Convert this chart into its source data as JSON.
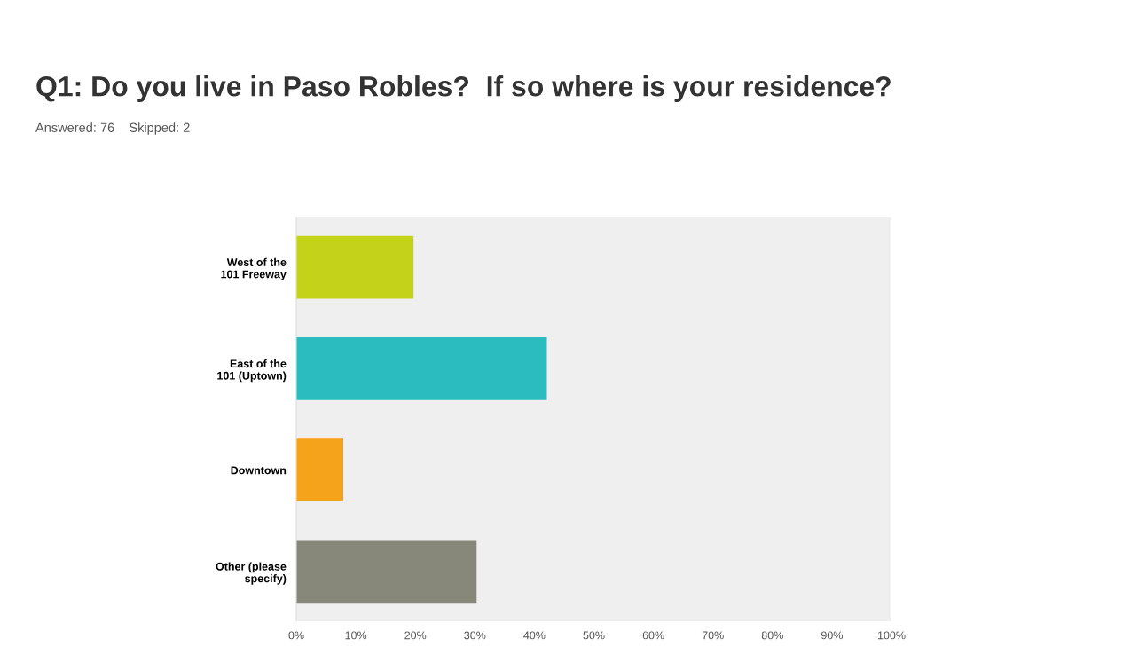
{
  "chart_data": {
    "type": "bar",
    "orientation": "horizontal",
    "title": "Q1: Do you live in Paso Robles?  If so where is your residence?",
    "subtitle": "Answered: 76    Skipped: 2",
    "categories": [
      "West of the\n101 Freeway",
      "East of the\n101 (Uptown)",
      "Downtown",
      "Other (please\nspecify)"
    ],
    "values": [
      19.7,
      42.1,
      7.9,
      30.3
    ],
    "colors": [
      "#c5d21a",
      "#2bbcc0",
      "#f5a31a",
      "#88887a"
    ],
    "xlim": [
      0,
      100
    ],
    "xticks": [
      {
        "value": 0,
        "label": "0%"
      },
      {
        "value": 10,
        "label": "10%"
      },
      {
        "value": 20,
        "label": "20%"
      },
      {
        "value": 30,
        "label": "30%"
      },
      {
        "value": 40,
        "label": "40%"
      },
      {
        "value": 50,
        "label": "50%"
      },
      {
        "value": 60,
        "label": "60%"
      },
      {
        "value": 70,
        "label": "70%"
      },
      {
        "value": 80,
        "label": "80%"
      },
      {
        "value": 90,
        "label": "90%"
      },
      {
        "value": 100,
        "label": "100%"
      }
    ],
    "grid": false,
    "legend": false
  }
}
